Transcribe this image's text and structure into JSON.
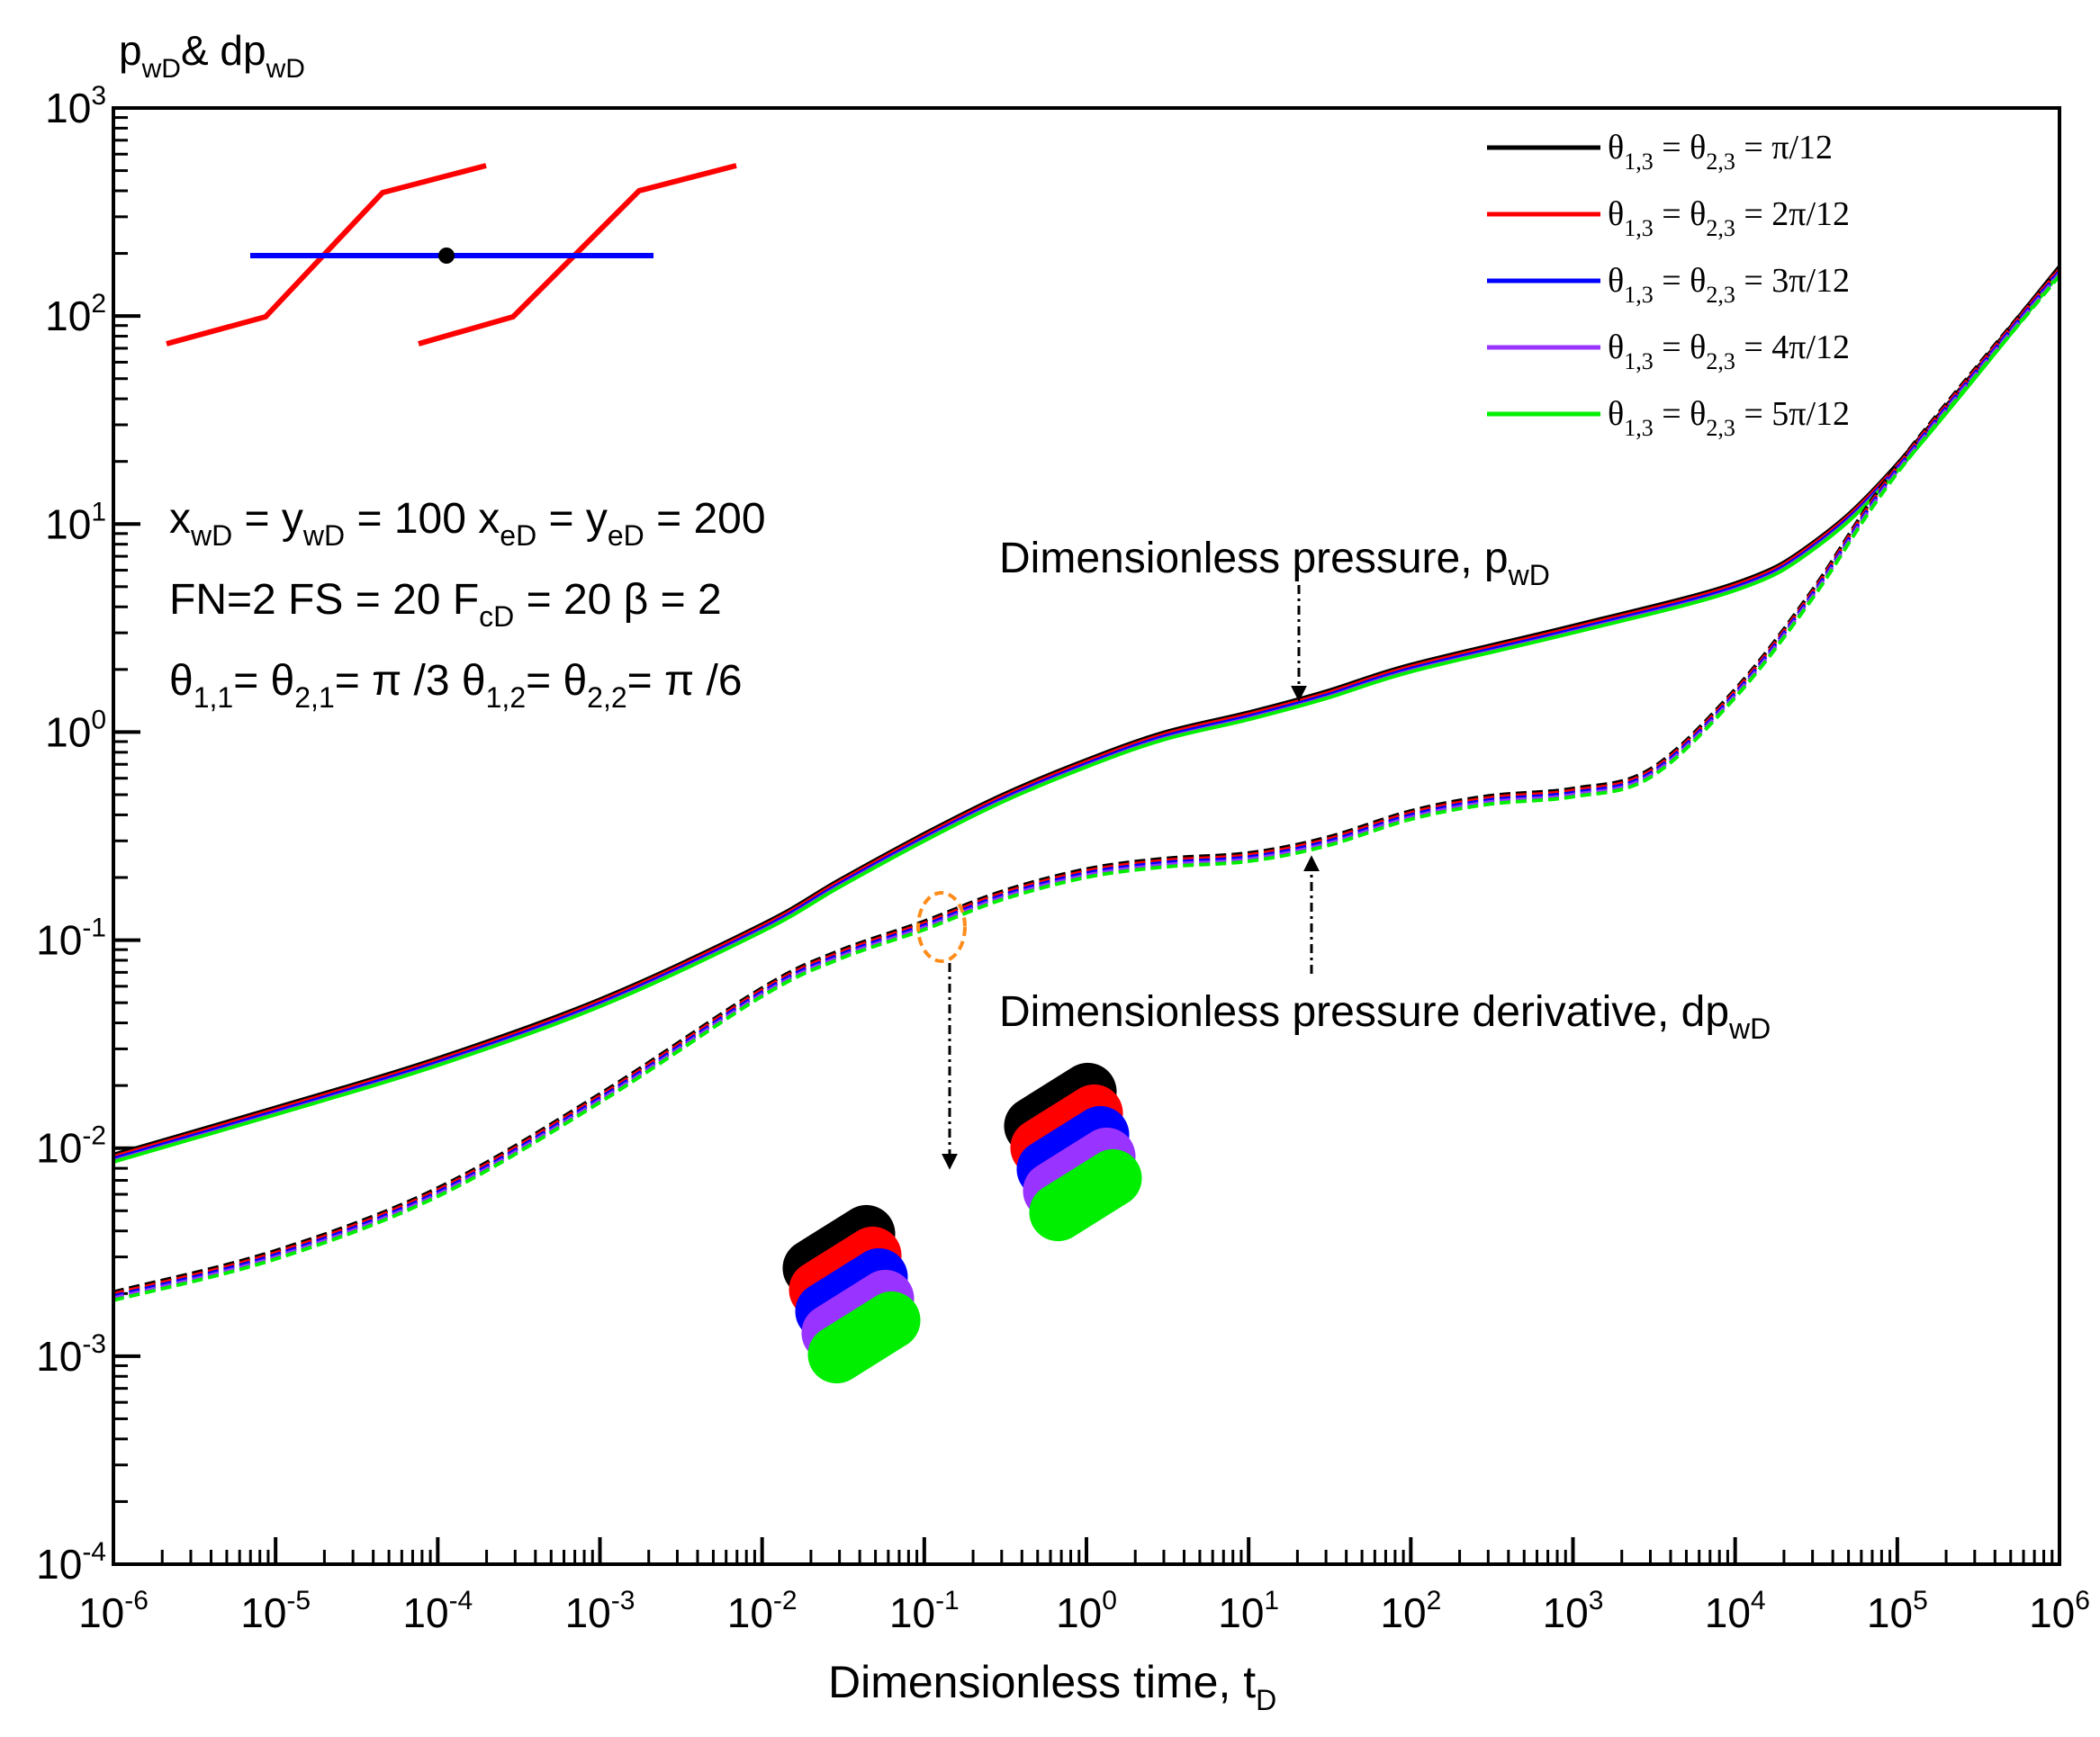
{
  "chart_data": {
    "type": "line",
    "xscale": "log",
    "yscale": "log",
    "xlim": [
      1e-06,
      1000000.0
    ],
    "ylim": [
      0.0001,
      1000.0
    ],
    "grid": false,
    "legend_position": "top-right",
    "y_title": {
      "base": "p",
      "sub": "wD",
      "mid": "& dp",
      "sub2": "wD"
    },
    "x_title": {
      "base": "Dimensionless time, t",
      "sub": "D"
    },
    "x_ticks": [
      {
        "v": 1e-06,
        "exp": "-6"
      },
      {
        "v": 1e-05,
        "exp": "-5"
      },
      {
        "v": 0.0001,
        "exp": "-4"
      },
      {
        "v": 0.001,
        "exp": "-3"
      },
      {
        "v": 0.01,
        "exp": "-2"
      },
      {
        "v": 0.1,
        "exp": "-1"
      },
      {
        "v": 1.0,
        "exp": "0"
      },
      {
        "v": 10.0,
        "exp": "1"
      },
      {
        "v": 100.0,
        "exp": "2"
      },
      {
        "v": 1000.0,
        "exp": "3"
      },
      {
        "v": 10000.0,
        "exp": "4"
      },
      {
        "v": 100000.0,
        "exp": "5"
      },
      {
        "v": 1000000.0,
        "exp": "6"
      }
    ],
    "y_ticks": [
      {
        "v": 0.0001,
        "exp": "-4"
      },
      {
        "v": 0.001,
        "exp": "-3"
      },
      {
        "v": 0.01,
        "exp": "-2"
      },
      {
        "v": 0.1,
        "exp": "-1"
      },
      {
        "v": 1.0,
        "exp": "0"
      },
      {
        "v": 10.0,
        "exp": "1"
      },
      {
        "v": 100.0,
        "exp": "2"
      },
      {
        "v": 1000.0,
        "exp": "3"
      }
    ],
    "tick_base": "10",
    "series": [
      {
        "label": {
          "sym": "θ",
          "s1": "1,3",
          "mid": " = θ",
          "s2": "2,3",
          "end": " = π/12"
        },
        "color": "#000000",
        "pressure_offset": 0.035,
        "derivative_offset": 0.03
      },
      {
        "label": {
          "sym": "θ",
          "s1": "1,3",
          "mid": " = θ",
          "s2": "2,3",
          "end": " =  2π/12"
        },
        "color": "#ff0000",
        "pressure_offset": 0.025,
        "derivative_offset": 0.02
      },
      {
        "label": {
          "sym": "θ",
          "s1": "1,3",
          "mid": " = θ",
          "s2": "2,3",
          "end": " =  3π/12"
        },
        "color": "#0000ff",
        "pressure_offset": 0.015,
        "derivative_offset": 0.01
      },
      {
        "label": {
          "sym": "θ",
          "s1": "1,3",
          "mid": " = θ",
          "s2": "2,3",
          "end": " =  4π/12"
        },
        "color": "#9933ff",
        "pressure_offset": 0.005,
        "derivative_offset": 0.0
      },
      {
        "label": {
          "sym": "θ",
          "s1": "1,3",
          "mid": " = θ",
          "s2": "2,3",
          "end": " =  5π/12"
        },
        "color": "#00ee00",
        "pressure_offset": 0.0,
        "derivative_offset": -0.01
      }
    ],
    "pressure_curve": [
      [
        1e-06,
        0.0086
      ],
      [
        1e-05,
        0.0145
      ],
      [
        0.0001,
        0.025
      ],
      [
        0.001,
        0.048
      ],
      [
        0.01,
        0.11
      ],
      [
        0.03,
        0.18
      ],
      [
        0.1,
        0.3
      ],
      [
        0.3,
        0.46
      ],
      [
        1.0,
        0.68
      ],
      [
        3.0,
        0.92
      ],
      [
        10.0,
        1.15
      ],
      [
        30.0,
        1.45
      ],
      [
        100.0,
        1.95
      ],
      [
        1000.0,
        3.0
      ],
      [
        10000.0,
        4.8
      ],
      [
        30000.0,
        7.5
      ],
      [
        100000.0,
        18
      ],
      [
        1000000.0,
        160
      ]
    ],
    "derivative_curve": [
      [
        1e-06,
        0.0019
      ],
      [
        1e-05,
        0.003
      ],
      [
        0.0001,
        0.006
      ],
      [
        0.001,
        0.017
      ],
      [
        0.01,
        0.055
      ],
      [
        0.03,
        0.083
      ],
      [
        0.1,
        0.115
      ],
      [
        0.3,
        0.16
      ],
      [
        1.0,
        0.205
      ],
      [
        3.0,
        0.23
      ],
      [
        10.0,
        0.245
      ],
      [
        30.0,
        0.29
      ],
      [
        100.0,
        0.39
      ],
      [
        300.0,
        0.46
      ],
      [
        1000.0,
        0.5
      ],
      [
        3000.0,
        0.62
      ],
      [
        10000.0,
        1.5
      ],
      [
        30000.0,
        4.5
      ],
      [
        100000.0,
        18
      ],
      [
        1000000.0,
        160
      ]
    ],
    "annotations": {
      "pressure_label": {
        "text": "Dimensionless pressure, p",
        "sub": "wD"
      },
      "derivative_label": {
        "text": "Dimensionless pressure derivative, dp",
        "sub": "wD"
      },
      "param_line1": {
        "a": "x",
        "a_sub": "wD",
        "b": " = y",
        "b_sub": "wD",
        "c": " = 100   x",
        "c_sub": "eD",
        "d": " = y",
        "d_sub": "eD",
        "e": " = 200"
      },
      "param_line2": {
        "a": "FN=2  FS = 20  F",
        "a_sub": "cD",
        "b": " = 20  β = 2"
      },
      "param_line3": {
        "a": "θ",
        "a_sub": "1,1",
        "b": "= θ",
        "b_sub": "2,1",
        "c": "= π /3  θ",
        "c_sub": "1,2",
        "d": "= θ",
        "d_sub": "2,2",
        "e": "= π /6"
      }
    }
  }
}
